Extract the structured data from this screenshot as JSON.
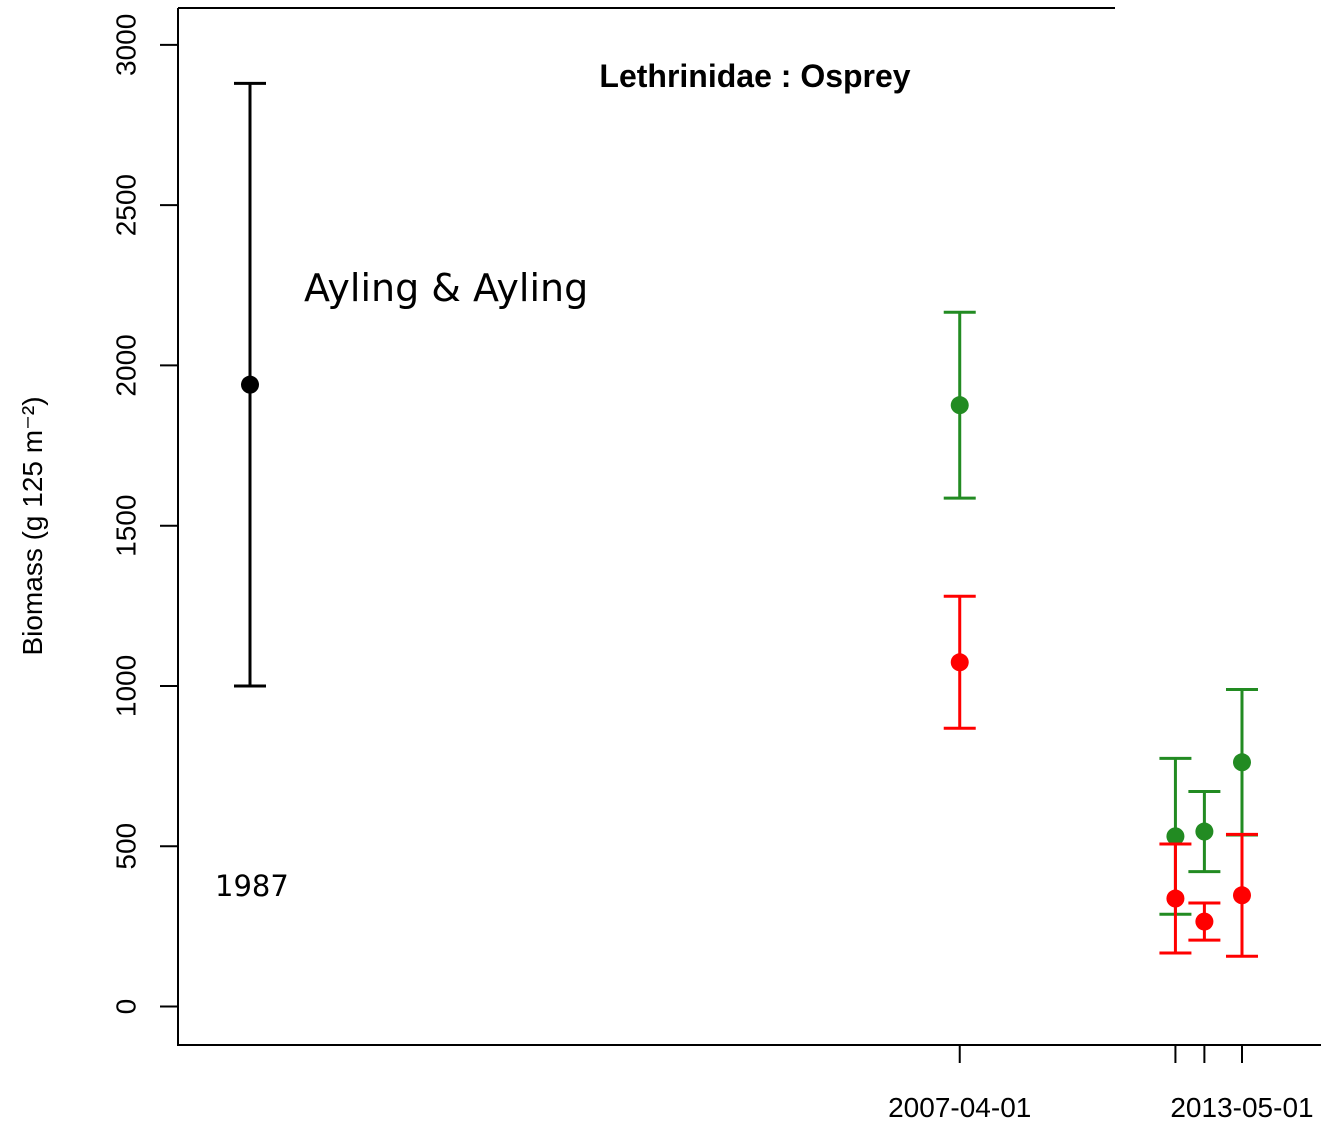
{
  "chart_data": {
    "type": "scatter",
    "title": "Lethrinidae : Osprey",
    "ylabel": "Biomass (g 125 m⁻²)",
    "annotation": "Ayling & Ayling",
    "reference": {
      "label": "1987",
      "values": [
        1940
      ],
      "errors": [
        940
      ],
      "color": "#000000"
    },
    "xlim": [
      "1990-05-26",
      "2015-01-13"
    ],
    "xticks": [
      {
        "value": "2007-04-01",
        "label": "2007-04-01"
      },
      {
        "value": "2011-11-24",
        "label": null
      },
      {
        "value": "2012-07-09",
        "label": null
      },
      {
        "value": "2013-05-01",
        "label": "2013-05-01"
      }
    ],
    "ylim": [
      -120,
      3115
    ],
    "yticks": [
      0,
      500,
      1000,
      1500,
      2000,
      2500,
      3000
    ],
    "series": [
      {
        "color": "#228b22",
        "x": [
          "2007-04-01",
          "2011-11-24",
          "2012-07-09",
          "2013-05-01"
        ],
        "values": [
          1876,
          531,
          546,
          762
        ],
        "errors": [
          290,
          243,
          125,
          227
        ]
      },
      {
        "color": "#ff0000",
        "x": [
          "2007-04-01",
          "2011-11-24",
          "2012-07-09",
          "2013-05-01"
        ],
        "values": [
          1074,
          337,
          265,
          347
        ],
        "errors": [
          206,
          170,
          58,
          190
        ]
      }
    ]
  }
}
